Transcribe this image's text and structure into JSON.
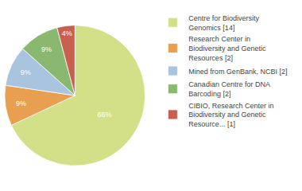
{
  "chart_data": {
    "type": "pie",
    "categories": [
      "Centre for Biodiversity\nGenomics [14]",
      "Research Center in\nBiodiversity and Genetic\nResources [2]",
      "Mined from GenBank, NCBI [2]",
      "Canadian Centre for DNA\nBarcoding [2]",
      "CIBIO, Research Center in\nBiodiversity and Genetic\nResource... [1]"
    ],
    "values": [
      66,
      9,
      9,
      9,
      4
    ],
    "value_labels": [
      "66%",
      "9%",
      "9%",
      "9%",
      "4%"
    ],
    "colors": [
      "#d4e087",
      "#e8a050",
      "#a8c4de",
      "#8ab870",
      "#c86050"
    ],
    "data_labels": true,
    "legend": "right"
  }
}
